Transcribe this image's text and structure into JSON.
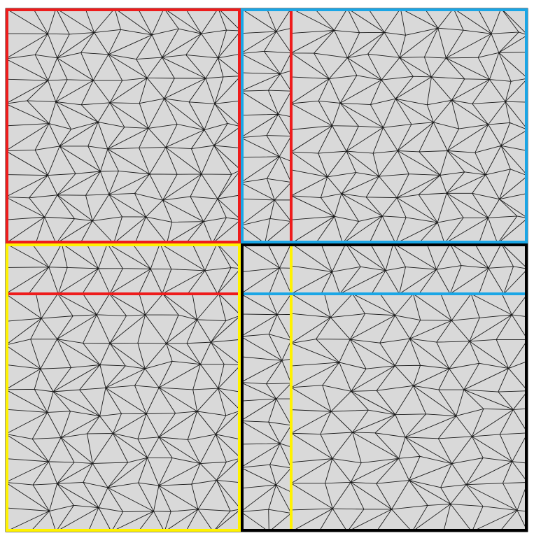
{
  "colors": {
    "background": "#ffffff",
    "mesh_fill": "#d9d9d9",
    "mesh_edge": "#1a1a1a",
    "red": "#ee1c1c",
    "blue": "#1aa6e6",
    "yellow": "#fff200",
    "black": "#000000"
  },
  "subdomains": [
    {
      "id": "top-left",
      "border_color": "red"
    },
    {
      "id": "top-right",
      "border_color": "blue"
    },
    {
      "id": "bottom-left",
      "border_color": "yellow"
    },
    {
      "id": "bottom-right",
      "border_color": "black"
    }
  ],
  "interface_lines": [
    {
      "id": "red-vertical-interface",
      "color": "red",
      "in": "top-right"
    },
    {
      "id": "red-horizontal-interface",
      "color": "red",
      "in": "bottom-left"
    },
    {
      "id": "yellow-vertical-interface",
      "color": "yellow",
      "in": "bottom-right"
    },
    {
      "id": "blue-horizontal-interface",
      "color": "blue",
      "in": "bottom-right"
    }
  ],
  "mesh": {
    "type": "unstructured triangular mesh"
  }
}
